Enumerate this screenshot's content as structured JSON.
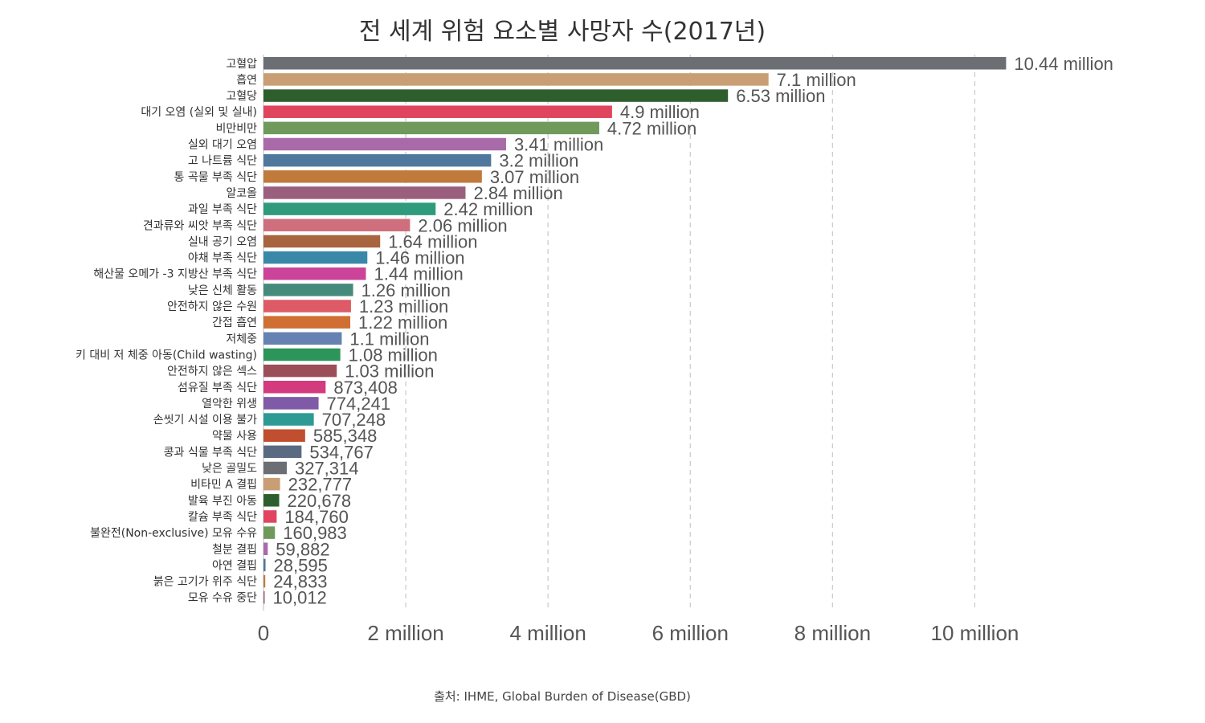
{
  "chart_data": {
    "type": "bar",
    "orientation": "horizontal",
    "title": "전 세계 위험 요소별 사망자 수(2017년)",
    "source": "출처: IHME, Global Burden of Disease(GBD)",
    "xlim": [
      0,
      11000000
    ],
    "grid": true,
    "x_ticks": [
      {
        "value": 0,
        "label": "0"
      },
      {
        "value": 2000000,
        "label": "2 million"
      },
      {
        "value": 4000000,
        "label": "4 million"
      },
      {
        "value": 6000000,
        "label": "6 million"
      },
      {
        "value": 8000000,
        "label": "8 million"
      },
      {
        "value": 10000000,
        "label": "10 million"
      }
    ],
    "categories": [
      "고혈압",
      "흡연",
      "고혈당",
      "대기 오염 (실외 및 실내)",
      "비만비만",
      "실외 대기 오염",
      "고 나트륨 식단",
      "통 곡물 부족 식단",
      "알코올",
      "과일 부족 식단",
      "견과류와 씨앗 부족 식단",
      "실내 공기 오염",
      "야채 부족 식단",
      "해산물 오메가 -3 지방산 부족 식단",
      "낮은 신체 활동",
      "안전하지 않은 수원",
      "간접 흡연",
      "저체중",
      "키 대비 저 체중 아동(Child wasting)",
      "안전하지 않은 섹스",
      "섬유질 부족 식단",
      "열악한 위생",
      "손씻기 시설 이용 불가",
      "약물 사용",
      "콩과 식물 부족 식단",
      "낮은 골밀도",
      "비타민 A 결핍",
      "발육 부진 아동",
      "칼슘 부족 식단",
      "불완전(Non-exclusive) 모유 수유",
      "철분 결핍",
      "아연 결핍",
      "붉은 고기가 위주 식단",
      "모유 수유 중단"
    ],
    "values": [
      10440000,
      7100000,
      6530000,
      4900000,
      4720000,
      3410000,
      3200000,
      3070000,
      2840000,
      2420000,
      2060000,
      1640000,
      1460000,
      1440000,
      1260000,
      1230000,
      1220000,
      1100000,
      1080000,
      1030000,
      873408,
      774241,
      707248,
      585348,
      534767,
      327314,
      232777,
      220678,
      184760,
      160983,
      59882,
      28595,
      24833,
      10012
    ],
    "value_labels": [
      "10.44 million",
      "7.1 million",
      "6.53 million",
      "4.9 million",
      "4.72 million",
      "3.41 million",
      "3.2 million",
      "3.07 million",
      "2.84 million",
      "2.42 million",
      "2.06 million",
      "1.64 million",
      "1.46 million",
      "1.44 million",
      "1.26 million",
      "1.23 million",
      "1.22 million",
      "1.1 million",
      "1.08 million",
      "1.03 million",
      "873,408",
      "774,241",
      "707,248",
      "585,348",
      "534,767",
      "327,314",
      "232,777",
      "220,678",
      "184,760",
      "160,983",
      "59,882",
      "28,595",
      "24,833",
      "10,012"
    ],
    "colors": [
      "#6b6f73",
      "#c99e74",
      "#2f5e2e",
      "#e0455e",
      "#6f9a5b",
      "#a86aa9",
      "#4f789c",
      "#c07a3c",
      "#9b5f7e",
      "#2f9a7c",
      "#cf6f7e",
      "#a8643e",
      "#3a88a8",
      "#cc449a",
      "#468a7c",
      "#dd5b66",
      "#cf6f33",
      "#6682b2",
      "#2b955a",
      "#9c4e58",
      "#d43a7e",
      "#7f5aa6",
      "#2e9a94",
      "#c04e2f",
      "#5a6a80",
      "#6b6f73",
      "#c99e74",
      "#2f5e2e",
      "#e0455e",
      "#6f9a5b",
      "#a86aa9",
      "#4f789c",
      "#c07a3c",
      "#9b5f7e"
    ]
  }
}
